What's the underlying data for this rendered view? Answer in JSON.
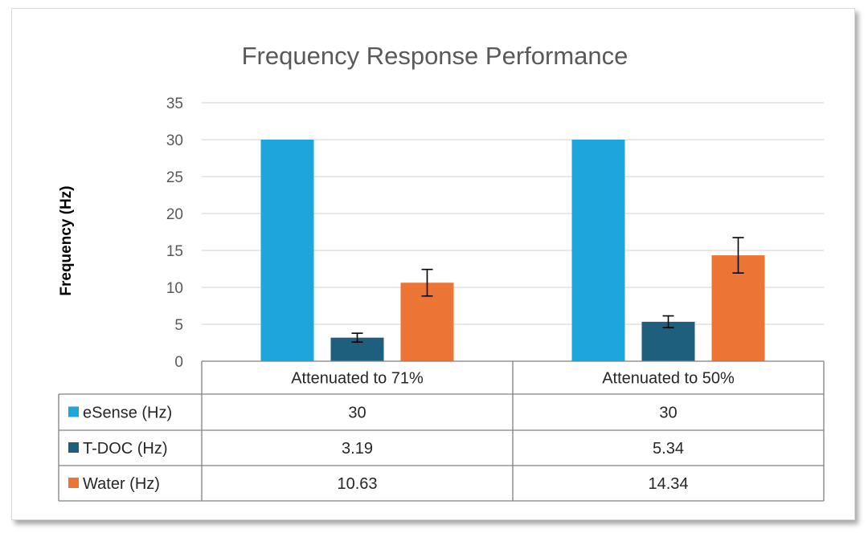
{
  "chart_data": {
    "type": "bar",
    "title": "Frequency Response Performance",
    "ylabel": "Frequency (Hz)",
    "xlabel": "",
    "ylim": [
      0,
      35
    ],
    "yticks": [
      0,
      5,
      10,
      15,
      20,
      25,
      30,
      35
    ],
    "grid": true,
    "legend": "data-table",
    "categories": [
      "Attenuated to 71%",
      "Attenuated to 50%"
    ],
    "series": [
      {
        "name": "eSense (Hz)",
        "values": [
          30,
          30
        ],
        "labels": [
          "30",
          "30"
        ],
        "color": "#1da5dc",
        "errors": null
      },
      {
        "name": "T-DOC (Hz)",
        "values": [
          3.19,
          5.34
        ],
        "labels": [
          "3.19",
          "5.34"
        ],
        "color": "#1f5f7e",
        "errors": [
          0.6,
          0.8
        ]
      },
      {
        "name": "Water (Hz)",
        "values": [
          10.63,
          14.34
        ],
        "labels": [
          "10.63",
          "14.34"
        ],
        "color": "#ec7535",
        "errors": [
          1.8,
          2.4
        ]
      }
    ]
  }
}
